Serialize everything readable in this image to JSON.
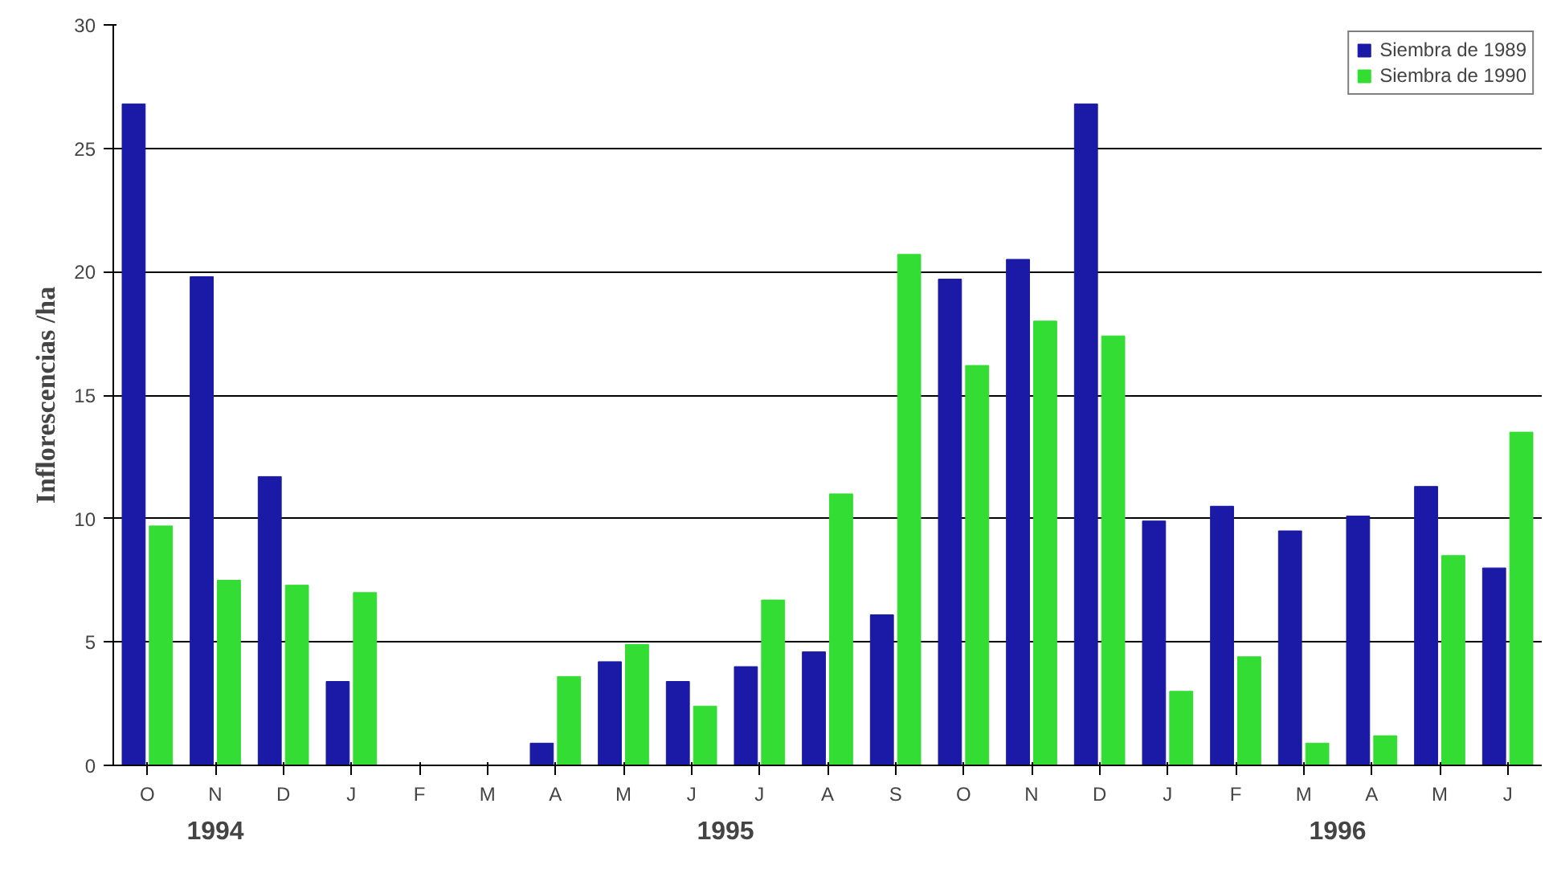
{
  "chart_data": {
    "type": "bar",
    "ylabel": "Inflorescencias /ha",
    "categories": [
      "O",
      "N",
      "D",
      "J",
      "F",
      "M",
      "A",
      "M",
      "J",
      "J",
      "A",
      "S",
      "O",
      "N",
      "D",
      "J",
      "F",
      "M",
      "A",
      "M",
      "J"
    ],
    "series": [
      {
        "name": "Siembra de 1989",
        "color": "#1a1aa6",
        "values": [
          26.8,
          19.8,
          11.7,
          3.4,
          0,
          0,
          0.9,
          4.2,
          3.4,
          4.0,
          4.6,
          6.1,
          19.7,
          20.5,
          26.8,
          9.9,
          10.5,
          9.5,
          10.1,
          11.3,
          8.0
        ]
      },
      {
        "name": "Siembra de 1990",
        "color": "#33dd33",
        "values": [
          9.7,
          7.5,
          7.3,
          7.0,
          0,
          0,
          3.6,
          4.9,
          2.4,
          6.7,
          11.0,
          20.7,
          16.2,
          18.0,
          17.4,
          3.0,
          4.4,
          0.9,
          1.2,
          8.5,
          13.5
        ]
      }
    ],
    "ylim": [
      0,
      30
    ],
    "yticks": [
      0,
      5,
      10,
      15,
      20,
      25,
      30
    ],
    "grid": "y",
    "legend": "top right",
    "annotations": [
      "1994",
      "1995",
      "1996"
    ]
  }
}
